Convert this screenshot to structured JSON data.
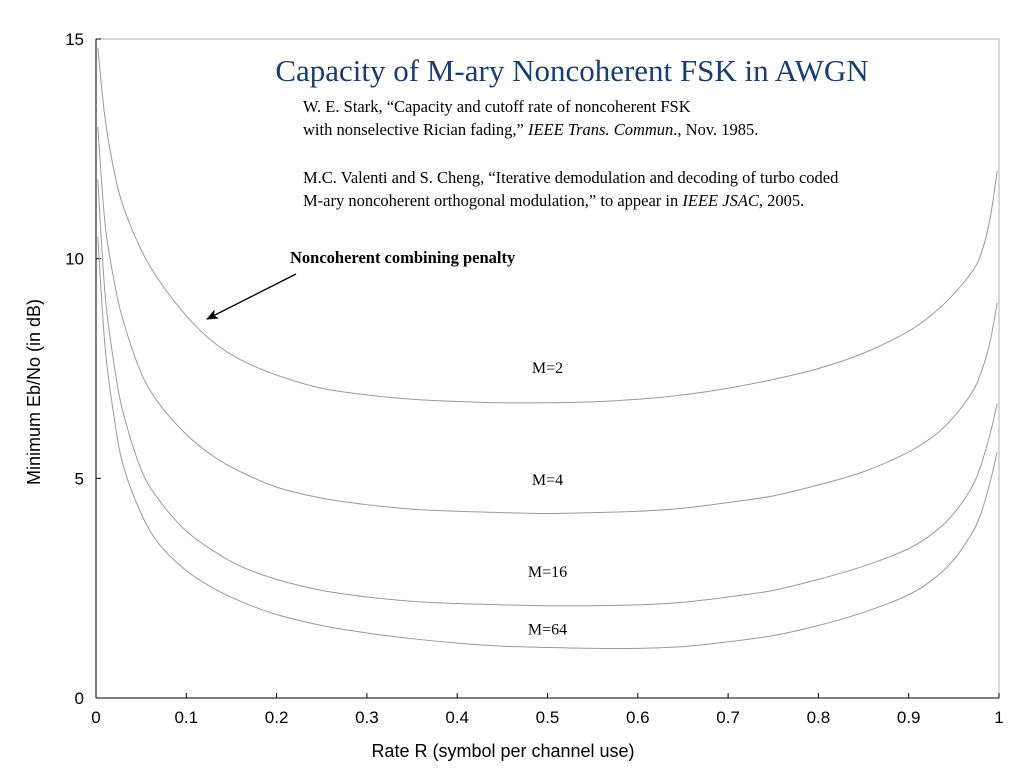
{
  "chart_data": {
    "type": "line",
    "title": "Capacity of M-ary Noncoherent FSK in AWGN",
    "xlabel": "Rate R (symbol per channel use)",
    "ylabel": "Minimum Eb/No (in dB)",
    "xlim": [
      0,
      1
    ],
    "ylim": [
      0,
      15
    ],
    "xticks": [
      "0",
      "0.1",
      "0.2",
      "0.3",
      "0.4",
      "0.5",
      "0.6",
      "0.7",
      "0.8",
      "0.9",
      "1"
    ],
    "yticks": [
      "0",
      "5",
      "10",
      "15"
    ],
    "grid": false,
    "references": [
      {
        "line1": "W. E. Stark, “Capacity and cutoff rate of noncoherent FSK",
        "line2_pre": "with nonselective Rician fading,” ",
        "line2_ital": "IEEE Trans. Commun",
        "line2_post": "., Nov. 1985."
      },
      {
        "line1": "M.C. Valenti and S. Cheng, “Iterative demodulation and decoding of turbo coded",
        "line2_pre": "M-ary noncoherent orthogonal modulation,” to appear in ",
        "line2_ital": "IEEE JSAC",
        "line2_post": ", 2005."
      }
    ],
    "annotation": "Noncoherent combining penalty",
    "series": [
      {
        "name": "M=2",
        "x": [
          0.002,
          0.01,
          0.02,
          0.03,
          0.05,
          0.07,
          0.1,
          0.13,
          0.16,
          0.2,
          0.25,
          0.3,
          0.35,
          0.4,
          0.45,
          0.5,
          0.55,
          0.6,
          0.65,
          0.7,
          0.75,
          0.8,
          0.85,
          0.9,
          0.93,
          0.95,
          0.97,
          0.98,
          0.99,
          0.998
        ],
        "y": [
          14.8,
          13.2,
          12.0,
          11.2,
          10.2,
          9.5,
          8.7,
          8.1,
          7.7,
          7.35,
          7.05,
          6.9,
          6.8,
          6.75,
          6.72,
          6.72,
          6.74,
          6.8,
          6.9,
          7.05,
          7.25,
          7.5,
          7.85,
          8.35,
          8.8,
          9.2,
          9.7,
          10.1,
          10.9,
          12.0
        ]
      },
      {
        "name": "M=4",
        "x": [
          0.002,
          0.01,
          0.02,
          0.03,
          0.05,
          0.07,
          0.1,
          0.13,
          0.16,
          0.2,
          0.25,
          0.3,
          0.35,
          0.4,
          0.45,
          0.5,
          0.55,
          0.6,
          0.65,
          0.7,
          0.75,
          0.8,
          0.85,
          0.9,
          0.93,
          0.95,
          0.97,
          0.98,
          0.99,
          0.998
        ],
        "y": [
          13.0,
          10.8,
          9.5,
          8.6,
          7.4,
          6.7,
          6.0,
          5.5,
          5.15,
          4.8,
          4.55,
          4.4,
          4.3,
          4.25,
          4.22,
          4.2,
          4.22,
          4.25,
          4.32,
          4.45,
          4.6,
          4.85,
          5.15,
          5.6,
          6.0,
          6.4,
          6.95,
          7.4,
          8.1,
          9.0
        ]
      },
      {
        "name": "M=16",
        "x": [
          0.002,
          0.01,
          0.02,
          0.03,
          0.05,
          0.07,
          0.1,
          0.13,
          0.16,
          0.2,
          0.25,
          0.3,
          0.35,
          0.4,
          0.45,
          0.5,
          0.55,
          0.6,
          0.65,
          0.7,
          0.75,
          0.8,
          0.85,
          0.9,
          0.93,
          0.95,
          0.97,
          0.98,
          0.99,
          0.998
        ],
        "y": [
          11.8,
          9.2,
          7.6,
          6.5,
          5.2,
          4.5,
          3.8,
          3.35,
          3.0,
          2.7,
          2.45,
          2.3,
          2.2,
          2.15,
          2.12,
          2.1,
          2.1,
          2.12,
          2.18,
          2.3,
          2.45,
          2.7,
          3.0,
          3.4,
          3.8,
          4.2,
          4.8,
          5.3,
          6.0,
          6.7
        ]
      },
      {
        "name": "M=64",
        "x": [
          0.002,
          0.01,
          0.02,
          0.03,
          0.05,
          0.07,
          0.1,
          0.13,
          0.16,
          0.2,
          0.25,
          0.3,
          0.35,
          0.4,
          0.45,
          0.5,
          0.55,
          0.6,
          0.65,
          0.7,
          0.75,
          0.8,
          0.85,
          0.9,
          0.93,
          0.95,
          0.97,
          0.98,
          0.99,
          0.998
        ],
        "y": [
          10.5,
          8.0,
          6.4,
          5.3,
          4.2,
          3.5,
          2.9,
          2.5,
          2.2,
          1.9,
          1.65,
          1.48,
          1.35,
          1.25,
          1.18,
          1.15,
          1.13,
          1.13,
          1.17,
          1.28,
          1.42,
          1.65,
          1.95,
          2.35,
          2.75,
          3.15,
          3.75,
          4.2,
          4.9,
          5.6
        ]
      }
    ],
    "curve_labels": [
      {
        "text": "M=2",
        "x": 0.5,
        "y": 7.4
      },
      {
        "text": "M=4",
        "x": 0.5,
        "y": 4.85
      },
      {
        "text": "M=16",
        "x": 0.5,
        "y": 2.75
      },
      {
        "text": "M=64",
        "x": 0.5,
        "y": 1.45
      }
    ]
  }
}
